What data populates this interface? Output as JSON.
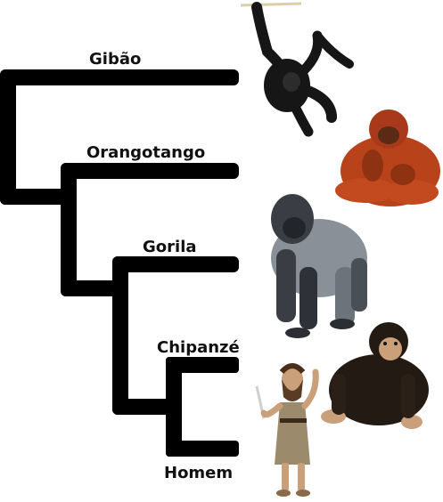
{
  "taxa": [
    {
      "label": "Gibão",
      "animal": "gibbon-icon"
    },
    {
      "label": "Orangotango",
      "animal": "orangutan-icon"
    },
    {
      "label": "Gorila",
      "animal": "gorilla-icon"
    },
    {
      "label": "Chipanzé",
      "animal": "chimpanzee-icon"
    },
    {
      "label": "Homem",
      "animal": "human-icon"
    }
  ],
  "colors": {
    "branch": "#000000",
    "gibbon_fur": "#161616",
    "orangutan_fur": "#b8431a",
    "gorilla_fur": "#8a9097",
    "chimp_fur": "#241a14",
    "skin": "#c9a07a",
    "costume": "#9c8a6c"
  }
}
